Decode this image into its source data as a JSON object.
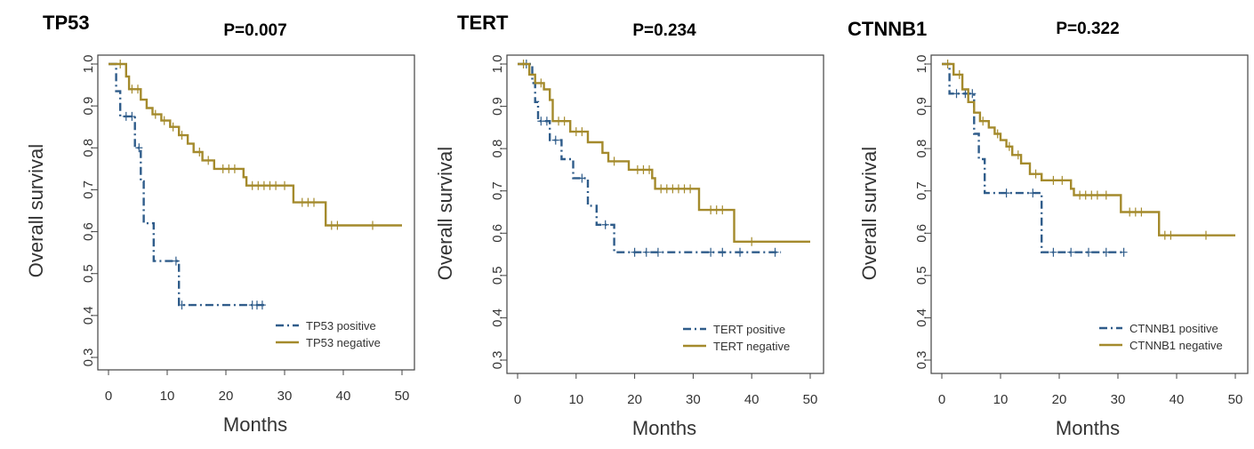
{
  "colors": {
    "positive": "#2f5c8a",
    "negative": "#a48a2c",
    "axis": "#444444"
  },
  "chart_data": [
    {
      "type": "line",
      "panel_label": "TP53",
      "title": "P=0.007",
      "xlabel": "Months",
      "ylabel": "Overall survival",
      "xlim": [
        0,
        50
      ],
      "ylim": [
        0.3,
        1.0
      ],
      "x_ticks": [
        "0",
        "10",
        "20",
        "30",
        "40",
        "50"
      ],
      "y_ticks": [
        "0.3",
        "0.4",
        "0.5",
        "0.6",
        "0.7",
        "0.8",
        "0.9",
        "1.0"
      ],
      "legend_position": "bottom-right",
      "series": [
        {
          "name": "TP53 positive",
          "style": "dashdot",
          "steps": [
            [
              0,
              1.0
            ],
            [
              1.3,
              1.0
            ],
            [
              1.3,
              0.935
            ],
            [
              2,
              0.935
            ],
            [
              2,
              0.875
            ],
            [
              4.5,
              0.875
            ],
            [
              4.5,
              0.8
            ],
            [
              5.5,
              0.8
            ],
            [
              5.5,
              0.72
            ],
            [
              6,
              0.72
            ],
            [
              6,
              0.62
            ],
            [
              7.7,
              0.62
            ],
            [
              7.7,
              0.53
            ],
            [
              12,
              0.53
            ],
            [
              12,
              0.425
            ],
            [
              26.5,
              0.425
            ]
          ],
          "censored": [
            [
              3,
              0.875
            ],
            [
              4,
              0.875
            ],
            [
              5.2,
              0.8
            ],
            [
              11.5,
              0.53
            ],
            [
              12.5,
              0.425
            ],
            [
              24.5,
              0.425
            ],
            [
              25.3,
              0.425
            ],
            [
              26.2,
              0.425
            ]
          ]
        },
        {
          "name": "TP53 negative",
          "style": "solid",
          "steps": [
            [
              0,
              1.0
            ],
            [
              3,
              1.0
            ],
            [
              3,
              0.97
            ],
            [
              3.5,
              0.97
            ],
            [
              3.5,
              0.94
            ],
            [
              5.5,
              0.94
            ],
            [
              5.5,
              0.915
            ],
            [
              6.5,
              0.915
            ],
            [
              6.5,
              0.895
            ],
            [
              7.5,
              0.895
            ],
            [
              7.5,
              0.88
            ],
            [
              9,
              0.88
            ],
            [
              9,
              0.865
            ],
            [
              10.5,
              0.865
            ],
            [
              10.5,
              0.85
            ],
            [
              12,
              0.85
            ],
            [
              12,
              0.83
            ],
            [
              13.5,
              0.83
            ],
            [
              13.5,
              0.81
            ],
            [
              14.5,
              0.81
            ],
            [
              14.5,
              0.79
            ],
            [
              16,
              0.79
            ],
            [
              16,
              0.77
            ],
            [
              18,
              0.77
            ],
            [
              18,
              0.75
            ],
            [
              23,
              0.75
            ],
            [
              23,
              0.73
            ],
            [
              23.5,
              0.73
            ],
            [
              23.5,
              0.71
            ],
            [
              31.5,
              0.71
            ],
            [
              31.5,
              0.67
            ],
            [
              37,
              0.67
            ],
            [
              37,
              0.615
            ],
            [
              50,
              0.615
            ]
          ],
          "censored": [
            [
              2,
              1.0
            ],
            [
              4,
              0.94
            ],
            [
              5,
              0.94
            ],
            [
              8,
              0.88
            ],
            [
              9.5,
              0.865
            ],
            [
              11,
              0.85
            ],
            [
              12.5,
              0.83
            ],
            [
              15.5,
              0.79
            ],
            [
              17,
              0.77
            ],
            [
              19.5,
              0.75
            ],
            [
              20.5,
              0.75
            ],
            [
              21.5,
              0.75
            ],
            [
              24.5,
              0.71
            ],
            [
              25.5,
              0.71
            ],
            [
              26.5,
              0.71
            ],
            [
              27.5,
              0.71
            ],
            [
              28.5,
              0.71
            ],
            [
              30,
              0.71
            ],
            [
              33,
              0.67
            ],
            [
              34,
              0.67
            ],
            [
              35,
              0.67
            ],
            [
              38,
              0.615
            ],
            [
              39,
              0.615
            ],
            [
              45,
              0.615
            ]
          ]
        }
      ]
    },
    {
      "type": "line",
      "panel_label": "TERT",
      "title": "P=0.234",
      "xlabel": "Months",
      "ylabel": "Overall survival",
      "xlim": [
        0,
        50
      ],
      "ylim": [
        0.3,
        1.0
      ],
      "x_ticks": [
        "0",
        "10",
        "20",
        "30",
        "40",
        "50"
      ],
      "y_ticks": [
        "0.3",
        "0.4",
        "0.5",
        "0.6",
        "0.7",
        "0.8",
        "0.9",
        "1.0"
      ],
      "legend_position": "bottom-right",
      "series": [
        {
          "name": "TERT positive",
          "style": "dashdot",
          "steps": [
            [
              0,
              1.0
            ],
            [
              2.5,
              1.0
            ],
            [
              2.5,
              0.955
            ],
            [
              3,
              0.955
            ],
            [
              3,
              0.91
            ],
            [
              3.5,
              0.91
            ],
            [
              3.5,
              0.865
            ],
            [
              5.5,
              0.865
            ],
            [
              5.5,
              0.82
            ],
            [
              7.5,
              0.82
            ],
            [
              7.5,
              0.775
            ],
            [
              9.5,
              0.775
            ],
            [
              9.5,
              0.73
            ],
            [
              12,
              0.73
            ],
            [
              12,
              0.665
            ],
            [
              13.5,
              0.665
            ],
            [
              13.5,
              0.62
            ],
            [
              16.5,
              0.62
            ],
            [
              16.5,
              0.555
            ],
            [
              45,
              0.555
            ]
          ],
          "censored": [
            [
              1.5,
              1.0
            ],
            [
              4,
              0.865
            ],
            [
              5,
              0.865
            ],
            [
              6.5,
              0.82
            ],
            [
              11,
              0.73
            ],
            [
              15,
              0.62
            ],
            [
              20,
              0.555
            ],
            [
              22,
              0.555
            ],
            [
              24,
              0.555
            ],
            [
              33,
              0.555
            ],
            [
              35,
              0.555
            ],
            [
              38,
              0.555
            ],
            [
              44,
              0.555
            ]
          ]
        },
        {
          "name": "TERT negative",
          "style": "solid",
          "steps": [
            [
              0,
              1.0
            ],
            [
              2,
              1.0
            ],
            [
              2,
              0.975
            ],
            [
              3,
              0.975
            ],
            [
              3,
              0.955
            ],
            [
              4.5,
              0.955
            ],
            [
              4.5,
              0.94
            ],
            [
              5.5,
              0.94
            ],
            [
              5.5,
              0.915
            ],
            [
              6,
              0.915
            ],
            [
              6,
              0.865
            ],
            [
              9,
              0.865
            ],
            [
              9,
              0.84
            ],
            [
              12,
              0.84
            ],
            [
              12,
              0.815
            ],
            [
              14.5,
              0.815
            ],
            [
              14.5,
              0.79
            ],
            [
              15.5,
              0.79
            ],
            [
              15.5,
              0.77
            ],
            [
              19,
              0.77
            ],
            [
              19,
              0.75
            ],
            [
              23,
              0.75
            ],
            [
              23,
              0.73
            ],
            [
              23.5,
              0.73
            ],
            [
              23.5,
              0.705
            ],
            [
              31,
              0.705
            ],
            [
              31,
              0.655
            ],
            [
              37,
              0.655
            ],
            [
              37,
              0.58
            ],
            [
              50,
              0.58
            ]
          ],
          "censored": [
            [
              1,
              1.0
            ],
            [
              4,
              0.955
            ],
            [
              7,
              0.865
            ],
            [
              8,
              0.865
            ],
            [
              10,
              0.84
            ],
            [
              11,
              0.84
            ],
            [
              16.5,
              0.77
            ],
            [
              20.5,
              0.75
            ],
            [
              21.5,
              0.75
            ],
            [
              22.5,
              0.75
            ],
            [
              24.5,
              0.705
            ],
            [
              25.5,
              0.705
            ],
            [
              26.5,
              0.705
            ],
            [
              27.5,
              0.705
            ],
            [
              28.5,
              0.705
            ],
            [
              29.5,
              0.705
            ],
            [
              33,
              0.655
            ],
            [
              34,
              0.655
            ],
            [
              35,
              0.655
            ],
            [
              40,
              0.58
            ]
          ]
        }
      ]
    },
    {
      "type": "line",
      "panel_label": "CTNNB1",
      "title": "P=0.322",
      "xlabel": "Months",
      "ylabel": "Overall survival",
      "xlim": [
        0,
        50
      ],
      "ylim": [
        0.3,
        1.0
      ],
      "x_ticks": [
        "0",
        "10",
        "20",
        "30",
        "40",
        "50"
      ],
      "y_ticks": [
        "0.3",
        "0.4",
        "0.5",
        "0.6",
        "0.7",
        "0.8",
        "0.9",
        "1.0"
      ],
      "legend_position": "bottom-right",
      "series": [
        {
          "name": "CTNNB1 positive",
          "style": "dashdot",
          "steps": [
            [
              0,
              1.0
            ],
            [
              1.3,
              1.0
            ],
            [
              1.3,
              0.93
            ],
            [
              5.5,
              0.93
            ],
            [
              5.5,
              0.835
            ],
            [
              6.3,
              0.835
            ],
            [
              6.3,
              0.775
            ],
            [
              7.3,
              0.775
            ],
            [
              7.3,
              0.695
            ],
            [
              17,
              0.695
            ],
            [
              17,
              0.555
            ],
            [
              31,
              0.555
            ]
          ],
          "censored": [
            [
              2.5,
              0.93
            ],
            [
              4,
              0.93
            ],
            [
              5.2,
              0.93
            ],
            [
              11,
              0.695
            ],
            [
              15.5,
              0.695
            ],
            [
              19,
              0.555
            ],
            [
              22,
              0.555
            ],
            [
              25,
              0.555
            ],
            [
              28,
              0.555
            ],
            [
              31,
              0.555
            ]
          ]
        },
        {
          "name": "CTNNB1 negative",
          "style": "solid",
          "steps": [
            [
              0,
              1.0
            ],
            [
              2,
              1.0
            ],
            [
              2,
              0.975
            ],
            [
              3.5,
              0.975
            ],
            [
              3.5,
              0.94
            ],
            [
              4.5,
              0.94
            ],
            [
              4.5,
              0.91
            ],
            [
              5.5,
              0.91
            ],
            [
              5.5,
              0.885
            ],
            [
              6.5,
              0.885
            ],
            [
              6.5,
              0.865
            ],
            [
              8,
              0.865
            ],
            [
              8,
              0.85
            ],
            [
              9,
              0.85
            ],
            [
              9,
              0.835
            ],
            [
              10,
              0.835
            ],
            [
              10,
              0.82
            ],
            [
              11,
              0.82
            ],
            [
              11,
              0.805
            ],
            [
              12,
              0.805
            ],
            [
              12,
              0.785
            ],
            [
              13.5,
              0.785
            ],
            [
              13.5,
              0.765
            ],
            [
              15,
              0.765
            ],
            [
              15,
              0.74
            ],
            [
              17,
              0.74
            ],
            [
              17,
              0.725
            ],
            [
              22,
              0.725
            ],
            [
              22,
              0.705
            ],
            [
              22.5,
              0.705
            ],
            [
              22.5,
              0.69
            ],
            [
              30.5,
              0.69
            ],
            [
              30.5,
              0.65
            ],
            [
              37,
              0.65
            ],
            [
              37,
              0.595
            ],
            [
              50,
              0.595
            ]
          ],
          "censored": [
            [
              1,
              1.0
            ],
            [
              3,
              0.975
            ],
            [
              7,
              0.865
            ],
            [
              9.5,
              0.835
            ],
            [
              11.5,
              0.805
            ],
            [
              13,
              0.785
            ],
            [
              16,
              0.74
            ],
            [
              19,
              0.725
            ],
            [
              20.5,
              0.725
            ],
            [
              23.5,
              0.69
            ],
            [
              24.5,
              0.69
            ],
            [
              25.5,
              0.69
            ],
            [
              26.5,
              0.69
            ],
            [
              28,
              0.69
            ],
            [
              32,
              0.65
            ],
            [
              33,
              0.65
            ],
            [
              34,
              0.65
            ],
            [
              38,
              0.595
            ],
            [
              39,
              0.595
            ],
            [
              45,
              0.595
            ]
          ]
        }
      ]
    }
  ]
}
